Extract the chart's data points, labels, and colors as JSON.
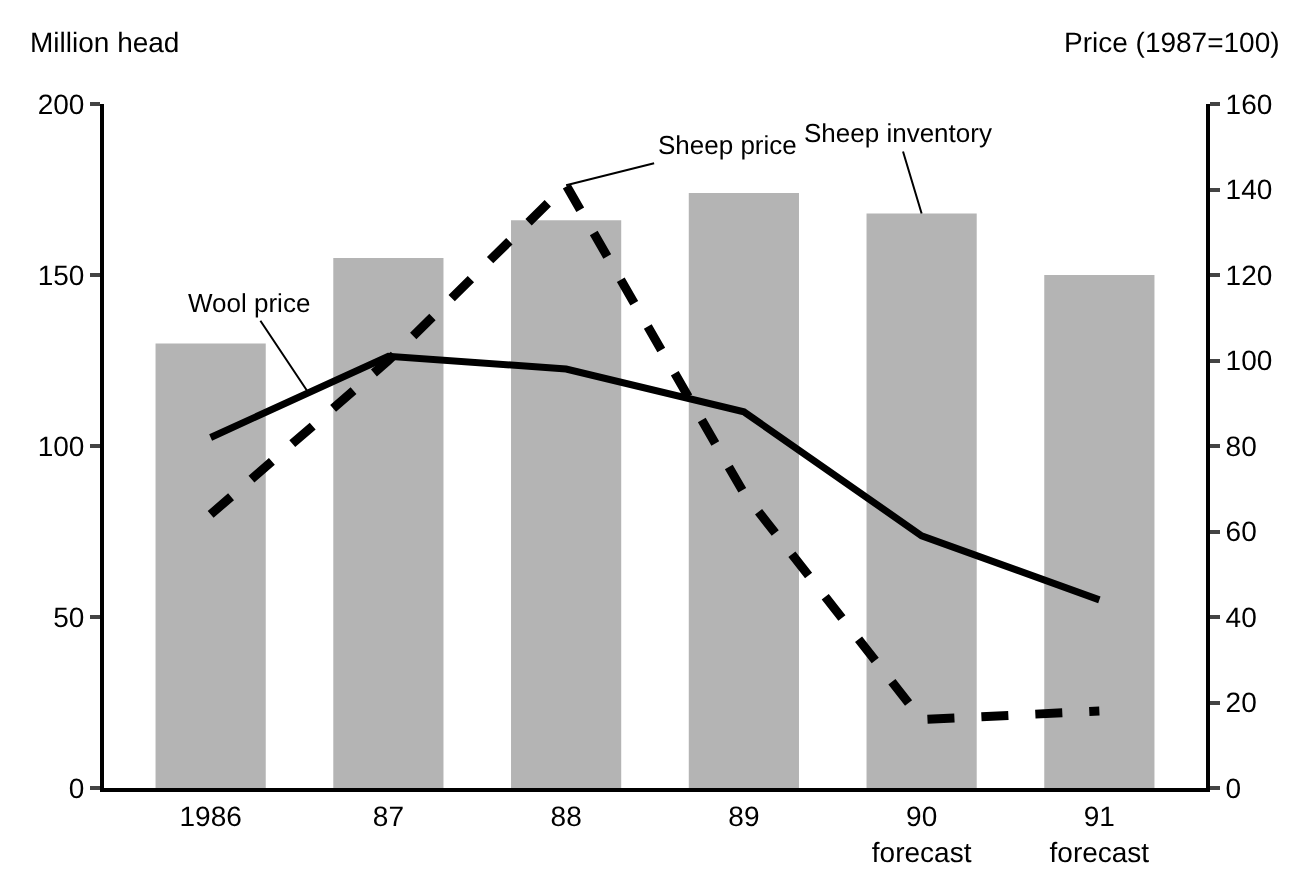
{
  "chart_data": {
    "type": "bar",
    "categories": [
      "1986",
      "87",
      "88",
      "89",
      "90\nforecast",
      "91\nforecast"
    ],
    "ylabel": "Million head",
    "y2label": "Price (1987=100)",
    "ylim": [
      0,
      200
    ],
    "yticks": [
      0,
      50,
      100,
      150,
      200
    ],
    "y2lim": [
      0,
      160
    ],
    "y2ticks": [
      0,
      20,
      40,
      60,
      80,
      100,
      120,
      140,
      160
    ],
    "legend": false,
    "series": [
      {
        "name": "Sheep inventory",
        "color": "#b4b4b4",
        "values": [
          130,
          155,
          166,
          174,
          168,
          150
        ]
      },
      {
        "name": "Wool price",
        "type": "line",
        "axis": "y2",
        "color": "#000000",
        "line_style": "solid",
        "values": [
          82,
          101,
          98,
          88,
          59,
          44
        ]
      },
      {
        "name": "Sheep price",
        "type": "line",
        "axis": "y2",
        "color": "#000000",
        "line_style": "dashed",
        "values": [
          64,
          100,
          141,
          69,
          16,
          18
        ]
      }
    ]
  }
}
